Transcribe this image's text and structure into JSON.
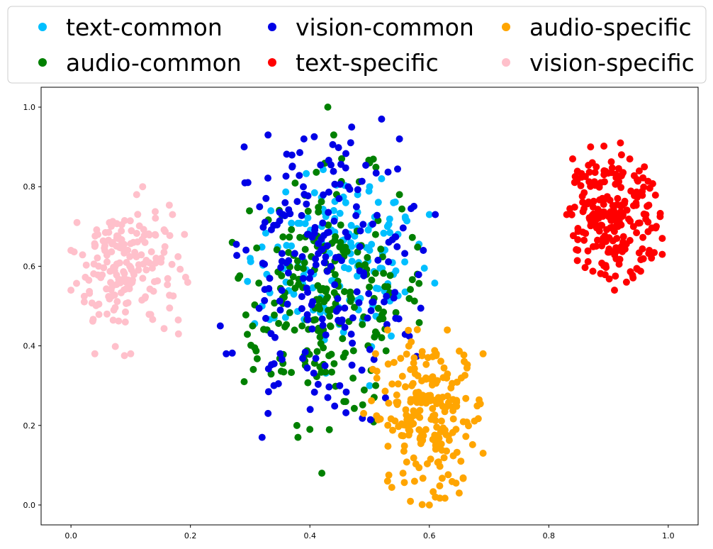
{
  "chart_data": {
    "type": "scatter",
    "title": "",
    "xlabel": "",
    "ylabel": "",
    "xlim": [
      -0.05,
      1.05
    ],
    "ylim": [
      -0.05,
      1.05
    ],
    "xticks": [
      "0.0",
      "0.2",
      "0.4",
      "0.6",
      "0.8",
      "1.0"
    ],
    "yticks": [
      "0.0",
      "0.2",
      "0.4",
      "0.6",
      "0.8",
      "1.0"
    ],
    "grid": false,
    "legend": "top, outside plot, 3 columns",
    "series": [
      {
        "name": "text-common",
        "color": "#00bfff",
        "cluster": {
          "cx": 0.45,
          "cy": 0.62,
          "sx": 0.075,
          "sy": 0.11,
          "n": 150,
          "xmin": 0.28,
          "xmax": 0.61,
          "ymin": 0.3,
          "ymax": 0.86
        },
        "points": [
          [
            0.3,
            0.62
          ],
          [
            0.32,
            0.5
          ],
          [
            0.34,
            0.47
          ],
          [
            0.36,
            0.56
          ],
          [
            0.38,
            0.6
          ],
          [
            0.4,
            0.68
          ],
          [
            0.42,
            0.7
          ],
          [
            0.44,
            0.74
          ],
          [
            0.46,
            0.76
          ],
          [
            0.48,
            0.78
          ],
          [
            0.5,
            0.8
          ],
          [
            0.52,
            0.82
          ],
          [
            0.54,
            0.76
          ],
          [
            0.56,
            0.72
          ],
          [
            0.53,
            0.7
          ],
          [
            0.5,
            0.64
          ],
          [
            0.48,
            0.6
          ],
          [
            0.45,
            0.55
          ],
          [
            0.6,
            0.73
          ],
          [
            0.5,
            0.3
          ]
        ]
      },
      {
        "name": "audio-common",
        "color": "#008000",
        "cluster": {
          "cx": 0.43,
          "cy": 0.52,
          "sx": 0.085,
          "sy": 0.15,
          "n": 240,
          "xmin": 0.27,
          "xmax": 0.59,
          "ymin": 0.16,
          "ymax": 0.93
        },
        "points": [
          [
            0.43,
            1.0
          ],
          [
            0.44,
            0.93
          ],
          [
            0.42,
            0.08
          ],
          [
            0.38,
            0.17
          ],
          [
            0.4,
            0.19
          ],
          [
            0.46,
            0.26
          ],
          [
            0.29,
            0.31
          ],
          [
            0.28,
            0.57
          ],
          [
            0.27,
            0.66
          ],
          [
            0.58,
            0.58
          ],
          [
            0.55,
            0.78
          ],
          [
            0.5,
            0.86
          ]
        ]
      },
      {
        "name": "vision-common",
        "color": "#0000e6",
        "cluster": {
          "cx": 0.42,
          "cy": 0.58,
          "sx": 0.095,
          "sy": 0.2,
          "n": 220,
          "xmin": 0.25,
          "xmax": 0.61,
          "ymin": 0.16,
          "ymax": 0.97
        },
        "points": [
          [
            0.52,
            0.97
          ],
          [
            0.47,
            0.95
          ],
          [
            0.33,
            0.93
          ],
          [
            0.29,
            0.9
          ],
          [
            0.32,
            0.17
          ],
          [
            0.33,
            0.23
          ],
          [
            0.26,
            0.38
          ],
          [
            0.25,
            0.45
          ],
          [
            0.61,
            0.73
          ],
          [
            0.59,
            0.64
          ],
          [
            0.55,
            0.92
          ],
          [
            0.39,
            0.92
          ],
          [
            0.43,
            0.27
          ],
          [
            0.45,
            0.3
          ]
        ]
      },
      {
        "name": "text-specific",
        "color": "#ff0000",
        "cluster": {
          "cx": 0.9,
          "cy": 0.73,
          "sx": 0.05,
          "sy": 0.1,
          "n": 230,
          "xmin": 0.83,
          "xmax": 0.99,
          "ymin": 0.54,
          "ymax": 0.91
        },
        "points": [
          [
            0.92,
            0.91
          ],
          [
            0.84,
            0.87
          ],
          [
            0.83,
            0.73
          ],
          [
            0.99,
            0.67
          ],
          [
            0.99,
            0.63
          ],
          [
            0.91,
            0.54
          ],
          [
            0.93,
            0.56
          ],
          [
            0.87,
            0.9
          ],
          [
            0.96,
            0.85
          ],
          [
            0.98,
            0.7
          ]
        ]
      },
      {
        "name": "audio-specific",
        "color": "#ffa500",
        "cluster": {
          "cx": 0.6,
          "cy": 0.22,
          "sx": 0.05,
          "sy": 0.1,
          "n": 220,
          "xmin": 0.49,
          "xmax": 0.69,
          "ymin": 0.0,
          "ymax": 0.45
        },
        "points": [
          [
            0.53,
            0.44
          ],
          [
            0.63,
            0.44
          ],
          [
            0.6,
            0.0
          ],
          [
            0.61,
            0.02
          ],
          [
            0.69,
            0.13
          ],
          [
            0.51,
            0.38
          ],
          [
            0.53,
            0.06
          ],
          [
            0.49,
            0.23
          ],
          [
            0.65,
            0.03
          ],
          [
            0.69,
            0.38
          ]
        ]
      },
      {
        "name": "vision-specific",
        "color": "#ffc0cb",
        "cluster": {
          "cx": 0.09,
          "cy": 0.59,
          "sx": 0.045,
          "sy": 0.09,
          "n": 190,
          "xmin": -0.01,
          "xmax": 0.2,
          "ymin": 0.37,
          "ymax": 0.81
        },
        "points": [
          [
            0.12,
            0.8
          ],
          [
            0.11,
            0.78
          ],
          [
            0.0,
            0.54
          ],
          [
            0.0,
            0.64
          ],
          [
            0.18,
            0.43
          ],
          [
            0.19,
            0.68
          ],
          [
            0.04,
            0.38
          ],
          [
            0.1,
            0.38
          ],
          [
            0.17,
            0.73
          ],
          [
            0.01,
            0.71
          ]
        ]
      }
    ]
  }
}
